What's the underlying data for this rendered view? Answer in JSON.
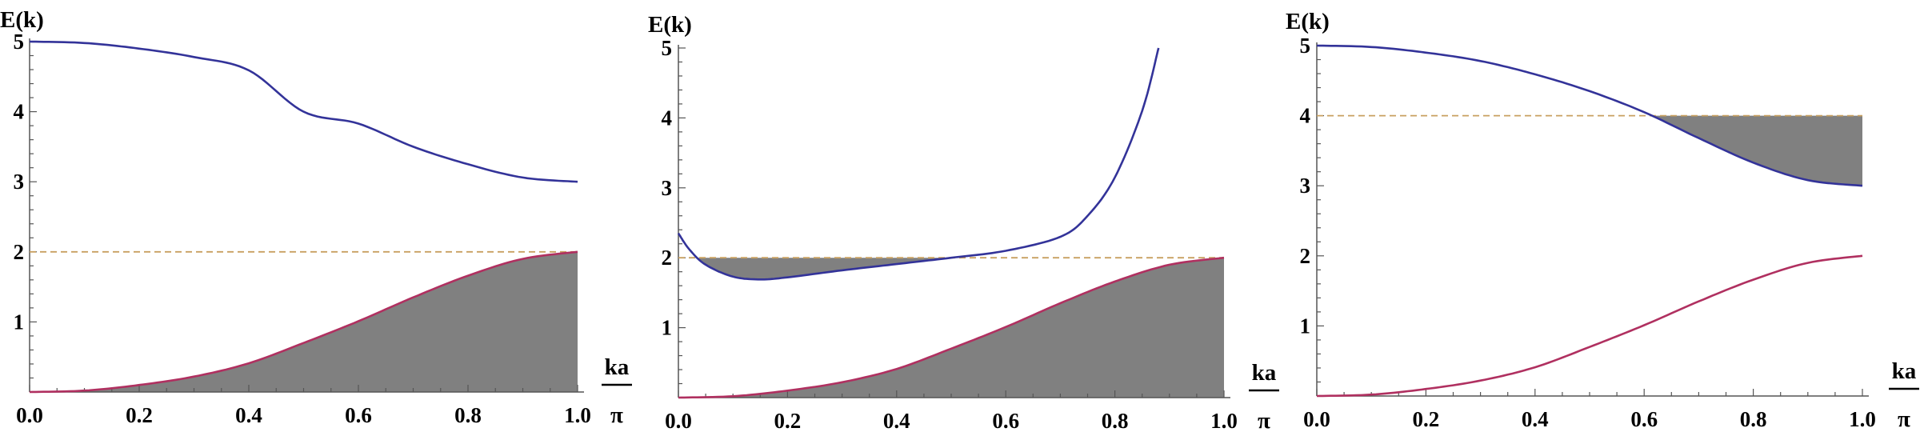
{
  "chart_data": [
    {
      "type": "line",
      "title": "",
      "ylabel": "E(k)",
      "xlabel_numerator": "ka",
      "xlabel_denominator": "π",
      "xlim": [
        0,
        1
      ],
      "ylim": [
        0,
        5
      ],
      "x_ticks": [
        "0.0",
        "0.2",
        "0.4",
        "0.6",
        "0.8",
        "1.0"
      ],
      "y_ticks": [
        "1",
        "2",
        "3",
        "4",
        "5"
      ],
      "dashed_level": 2,
      "shaded": "area under lower band",
      "series": [
        {
          "color": "#333399",
          "x": [
            0,
            0.1,
            0.2,
            0.3,
            0.4,
            0.5,
            0.6,
            0.7,
            0.8,
            0.9,
            1.0
          ],
          "y": [
            5.0,
            4.98,
            4.9,
            4.78,
            4.59,
            4.0,
            3.83,
            3.5,
            3.25,
            3.06,
            3.0
          ]
        },
        {
          "color": "#b03060",
          "x": [
            0,
            0.1,
            0.2,
            0.3,
            0.4,
            0.5,
            0.6,
            0.7,
            0.8,
            0.9,
            1.0
          ],
          "y": [
            0.0,
            0.02,
            0.1,
            0.22,
            0.41,
            0.7,
            1.01,
            1.35,
            1.66,
            1.9,
            2.0
          ]
        }
      ]
    },
    {
      "type": "line",
      "title": "",
      "ylabel": "E(k)",
      "xlabel_numerator": "ka",
      "xlabel_denominator": "π",
      "xlim": [
        0,
        1
      ],
      "ylim": [
        0,
        5
      ],
      "x_ticks": [
        "0.0",
        "0.2",
        "0.4",
        "0.6",
        "0.8",
        "1.0"
      ],
      "y_ticks": [
        "1",
        "2",
        "3",
        "4",
        "5"
      ],
      "dashed_level": 2,
      "shaded": "area under lower band and between dashed line and upper band where upper band is below 2",
      "series": [
        {
          "color": "#333399",
          "x": [
            0,
            0.02,
            0.05,
            0.1,
            0.15,
            0.2,
            0.3,
            0.4,
            0.5,
            0.6,
            0.7,
            0.75,
            0.8,
            0.85,
            0.88
          ],
          "y": [
            2.35,
            2.12,
            1.9,
            1.73,
            1.69,
            1.72,
            1.82,
            1.91,
            2.0,
            2.1,
            2.3,
            2.6,
            3.15,
            4.1,
            5.0
          ]
        },
        {
          "color": "#b03060",
          "x": [
            0,
            0.1,
            0.2,
            0.3,
            0.4,
            0.5,
            0.6,
            0.7,
            0.8,
            0.9,
            1.0
          ],
          "y": [
            0.0,
            0.02,
            0.1,
            0.22,
            0.41,
            0.7,
            1.01,
            1.35,
            1.66,
            1.9,
            2.0
          ]
        }
      ]
    },
    {
      "type": "line",
      "title": "",
      "ylabel": "E(k)",
      "xlabel_numerator": "ka",
      "xlabel_denominator": "π",
      "xlim": [
        0,
        1
      ],
      "ylim": [
        0,
        5
      ],
      "x_ticks": [
        "0.0",
        "0.2",
        "0.4",
        "0.6",
        "0.8",
        "1.0"
      ],
      "y_ticks": [
        "1",
        "2",
        "3",
        "4",
        "5"
      ],
      "dashed_level": 4,
      "shaded": "between dashed line and upper band where upper band is below 4",
      "series": [
        {
          "color": "#333399",
          "x": [
            0,
            0.1,
            0.2,
            0.3,
            0.4,
            0.5,
            0.6,
            0.7,
            0.8,
            0.9,
            1.0
          ],
          "y": [
            5.0,
            4.98,
            4.9,
            4.78,
            4.59,
            4.35,
            4.05,
            3.68,
            3.33,
            3.08,
            3.0
          ]
        },
        {
          "color": "#b03060",
          "x": [
            0,
            0.1,
            0.2,
            0.3,
            0.4,
            0.5,
            0.6,
            0.7,
            0.8,
            0.9,
            1.0
          ],
          "y": [
            0.0,
            0.02,
            0.1,
            0.22,
            0.41,
            0.7,
            1.01,
            1.35,
            1.66,
            1.9,
            2.0
          ]
        }
      ]
    }
  ]
}
